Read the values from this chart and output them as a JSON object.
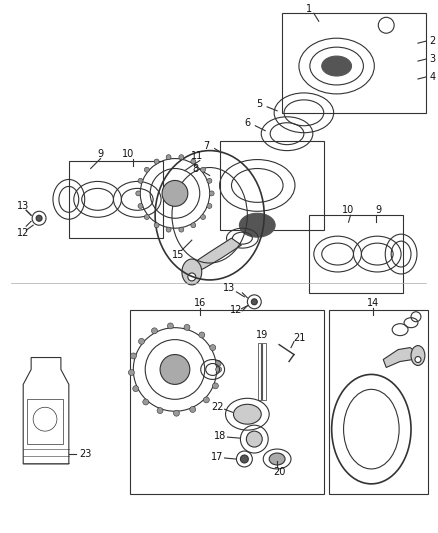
{
  "bg_color": "#ffffff",
  "line_color": "#333333",
  "fig_width": 4.38,
  "fig_height": 5.33,
  "dpi": 100
}
